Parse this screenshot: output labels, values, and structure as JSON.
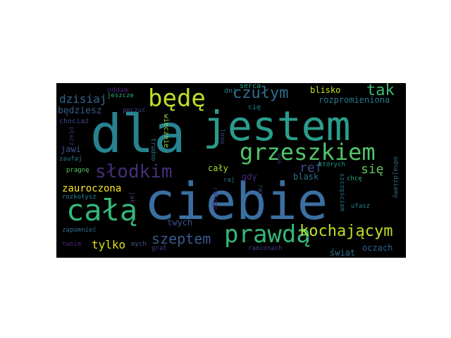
{
  "word_cloud": {
    "words": [
      {
        "text": "dla",
        "color": "#26838f",
        "vertical": false
      },
      {
        "text": "jestem",
        "color": "#2a9d8c",
        "vertical": false
      },
      {
        "text": "ciebie",
        "color": "#3b6fa1",
        "vertical": false
      },
      {
        "text": "całą",
        "color": "#35b779",
        "vertical": false
      },
      {
        "text": "grzeszkiem",
        "color": "#52c569",
        "vertical": false
      },
      {
        "text": "prawdą",
        "color": "#35b779",
        "vertical": false
      },
      {
        "text": "będę",
        "color": "#c0df25",
        "vertical": false
      },
      {
        "text": "słodkim",
        "color": "#472d7b",
        "vertical": false
      },
      {
        "text": "kochającym",
        "color": "#bddf26",
        "vertical": false
      },
      {
        "text": "szeptem",
        "color": "#38598c",
        "vertical": false
      },
      {
        "text": "czułym",
        "color": "#2e6e8e",
        "vertical": false
      },
      {
        "text": "tak",
        "color": "#3dbc74",
        "vertical": false
      },
      {
        "text": "się",
        "color": "#5ec962",
        "vertical": false
      },
      {
        "text": "ref",
        "color": "#3e4a89",
        "vertical": false
      },
      {
        "text": "dzisiaj",
        "color": "#31688e",
        "vertical": false
      },
      {
        "text": "będziesz",
        "color": "#355f8d",
        "vertical": false
      },
      {
        "text": "zauroczona",
        "color": "#fde725",
        "vertical": false
      },
      {
        "text": "tylko",
        "color": "#dde318",
        "vertical": false
      },
      {
        "text": "blisko",
        "color": "#c5e021",
        "vertical": false
      },
      {
        "text": "rozpromieniona",
        "color": "#2a788e",
        "vertical": false
      },
      {
        "text": "cały",
        "color": "#a2da37",
        "vertical": false
      },
      {
        "text": "gdy",
        "color": "#482878",
        "vertical": false
      },
      {
        "text": "blask",
        "color": "#2c728e",
        "vertical": false
      },
      {
        "text": "twych",
        "color": "#3b528b",
        "vertical": false
      },
      {
        "text": "oczach",
        "color": "#33638d",
        "vertical": false
      },
      {
        "text": "świat",
        "color": "#2d708e",
        "vertical": false
      },
      {
        "text": "jawi",
        "color": "#3b528b",
        "vertical": false
      },
      {
        "text": "oddam",
        "color": "#482475",
        "vertical": false
      },
      {
        "text": "dni",
        "color": "#287c8e",
        "vertical": false
      },
      {
        "text": "serca",
        "color": "#20a386",
        "vertical": false
      },
      {
        "text": "cię",
        "color": "#25858e",
        "vertical": false
      },
      {
        "text": "chociaż",
        "color": "#3e4989",
        "vertical": false
      },
      {
        "text": "zaufaj",
        "color": "#2a788e",
        "vertical": false
      },
      {
        "text": "pragnę",
        "color": "#5ec962",
        "vertical": false
      },
      {
        "text": "rozkołysz",
        "color": "#26828e",
        "vertical": false
      },
      {
        "text": "zapomnieć",
        "color": "#2d708e",
        "vertical": false
      },
      {
        "text": "twoim",
        "color": "#482677",
        "vertical": false
      },
      {
        "text": "mych",
        "color": "#3a548c",
        "vertical": false
      },
      {
        "text": "grał",
        "color": "#404387",
        "vertical": false
      },
      {
        "text": "ramionach",
        "color": "#433e85",
        "vertical": false
      },
      {
        "text": "raj",
        "color": "#2c738e",
        "vertical": false
      },
      {
        "text": "których",
        "color": "#1f968b",
        "vertical": false
      },
      {
        "text": "chcę",
        "color": "#22a884",
        "vertical": false
      },
      {
        "text": "ufasz",
        "color": "#27808e",
        "vertical": false
      },
      {
        "text": "jeszcze",
        "color": "#2db27d",
        "vertical": false
      },
      {
        "text": "poczuć",
        "color": "#3f4788",
        "vertical": false
      },
      {
        "text": "płacz",
        "color": "#482677",
        "vertical": true
      },
      {
        "text": "wiecznie",
        "color": "#8fd744",
        "vertical": true
      },
      {
        "text": "trudno",
        "color": "#2a778e",
        "vertical": true
      },
      {
        "text": "looo",
        "color": "#3f4889",
        "vertical": true
      },
      {
        "text": "całego",
        "color": "#481f70",
        "vertical": true
      },
      {
        "text": "jak",
        "color": "#463480",
        "vertical": true
      },
      {
        "text": "raz",
        "color": "#3e4c8a",
        "vertical": true
      },
      {
        "text": "szczęściem",
        "color": "#2e6d8e",
        "vertical": true
      },
      {
        "text": "odnajdziemy",
        "color": "#2f6b8e",
        "vertical": true
      },
      {
        "text": "ooo",
        "color": "#404688",
        "vertical": true
      }
    ]
  }
}
